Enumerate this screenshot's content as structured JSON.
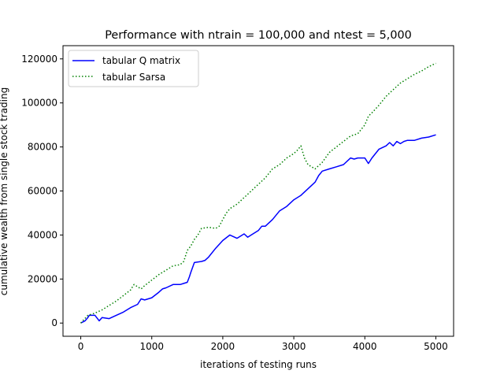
{
  "chart_data": {
    "type": "line",
    "title": "Performance with ntrain = 100,000 and ntest = 5,000",
    "xlabel": "iterations of testing runs",
    "ylabel": "cumulative wealth from single stock trading",
    "xlim": [
      -250,
      5250
    ],
    "ylim": [
      -6000,
      126000
    ],
    "x_ticks": [
      0,
      1000,
      2000,
      3000,
      4000,
      5000
    ],
    "x_tick_labels": [
      "0",
      "1000",
      "2000",
      "3000",
      "4000",
      "5000"
    ],
    "y_ticks": [
      0,
      20000,
      40000,
      60000,
      80000,
      100000,
      120000
    ],
    "y_tick_labels": [
      "0",
      "20000",
      "40000",
      "60000",
      "80000",
      "100000",
      "120000"
    ],
    "grid": false,
    "legend_position": "upper-left",
    "series": [
      {
        "name": "tabular Q matrix",
        "color": "#0000ff",
        "style": "solid",
        "x": [
          0,
          60,
          100,
          120,
          200,
          260,
          300,
          400,
          500,
          600,
          700,
          800,
          850,
          900,
          1000,
          1100,
          1150,
          1200,
          1300,
          1400,
          1450,
          1500,
          1530,
          1550,
          1600,
          1700,
          1750,
          1800,
          1900,
          2000,
          2100,
          2200,
          2300,
          2350,
          2400,
          2500,
          2550,
          2600,
          2700,
          2800,
          2900,
          3000,
          3100,
          3200,
          3300,
          3350,
          3400,
          3500,
          3600,
          3700,
          3800,
          3850,
          3900,
          4000,
          4050,
          4100,
          4150,
          4200,
          4300,
          4350,
          4400,
          4450,
          4500,
          4550,
          4600,
          4700,
          4800,
          4900,
          5000
        ],
        "y": [
          0,
          1000,
          2500,
          3500,
          3500,
          1000,
          2500,
          2000,
          3500,
          5000,
          7000,
          8500,
          11000,
          10500,
          11500,
          14000,
          15500,
          16000,
          17500,
          17500,
          18000,
          18500,
          21000,
          23000,
          27500,
          28000,
          28500,
          30000,
          34000,
          37500,
          40000,
          38500,
          40500,
          39000,
          40000,
          42000,
          44000,
          44000,
          47000,
          51000,
          53000,
          56000,
          58000,
          61000,
          64000,
          67000,
          69000,
          70000,
          71000,
          72000,
          75000,
          74500,
          75000,
          75000,
          72500,
          75000,
          77000,
          79000,
          80500,
          82000,
          80500,
          82500,
          81500,
          82500,
          83000,
          83000,
          84000,
          84500,
          85500
        ]
      },
      {
        "name": "tabular Sarsa",
        "color": "#008000",
        "style": "dotted",
        "x": [
          0,
          100,
          200,
          300,
          400,
          500,
          600,
          700,
          750,
          800,
          850,
          900,
          1000,
          1100,
          1200,
          1300,
          1400,
          1450,
          1500,
          1550,
          1600,
          1650,
          1700,
          1800,
          1900,
          1950,
          2000,
          2050,
          2100,
          2200,
          2300,
          2400,
          2500,
          2600,
          2700,
          2800,
          2900,
          3000,
          3050,
          3100,
          3150,
          3200,
          3300,
          3400,
          3500,
          3600,
          3700,
          3800,
          3900,
          4000,
          4050,
          4100,
          4200,
          4300,
          4400,
          4500,
          4600,
          4700,
          4800,
          4900,
          5000
        ],
        "y": [
          0,
          3500,
          4500,
          6000,
          8000,
          10000,
          12500,
          15000,
          17500,
          16500,
          15500,
          17000,
          19500,
          22000,
          24000,
          26000,
          26500,
          28000,
          33000,
          35000,
          38000,
          40000,
          43000,
          43500,
          43000,
          44000,
          47000,
          50000,
          52000,
          54000,
          57000,
          60000,
          63000,
          66000,
          70000,
          72000,
          75000,
          77000,
          78500,
          80500,
          75000,
          72000,
          70000,
          73000,
          77500,
          80000,
          82500,
          85000,
          86000,
          90000,
          94000,
          95500,
          99000,
          103000,
          106000,
          109000,
          111000,
          113000,
          114500,
          116500,
          118000
        ]
      }
    ]
  }
}
